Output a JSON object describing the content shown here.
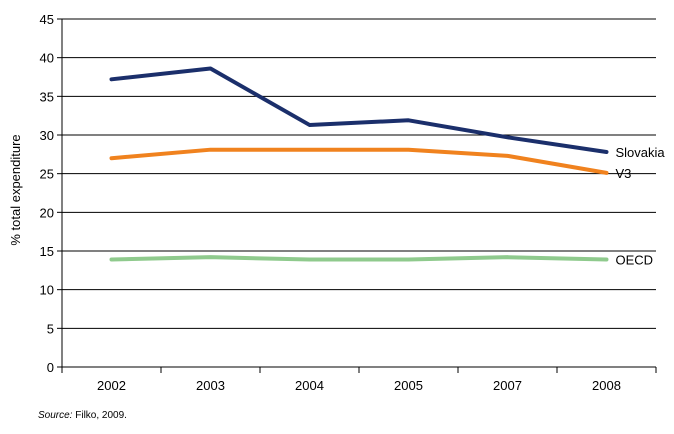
{
  "chart_data": {
    "type": "line",
    "categories": [
      "2002",
      "2003",
      "2004",
      "2005",
      "2007",
      "2008"
    ],
    "ylabel": "% total expenditure",
    "ylim": [
      0,
      45
    ],
    "yticks": [
      0,
      5,
      10,
      15,
      20,
      25,
      30,
      35,
      40,
      45
    ],
    "grid": true,
    "series": [
      {
        "name": "Slovakia",
        "color": "#1b2f6b",
        "values": [
          37.2,
          38.6,
          31.3,
          31.9,
          29.7,
          27.8
        ]
      },
      {
        "name": "V3",
        "color": "#f0821e",
        "values": [
          27.0,
          28.1,
          28.1,
          28.1,
          27.3,
          25.1
        ]
      },
      {
        "name": "OECD",
        "color": "#8fca8d",
        "values": [
          13.9,
          14.2,
          13.9,
          13.9,
          14.2,
          13.9
        ]
      }
    ]
  },
  "source": {
    "label": "Source:",
    "text": " Filko, 2009."
  }
}
